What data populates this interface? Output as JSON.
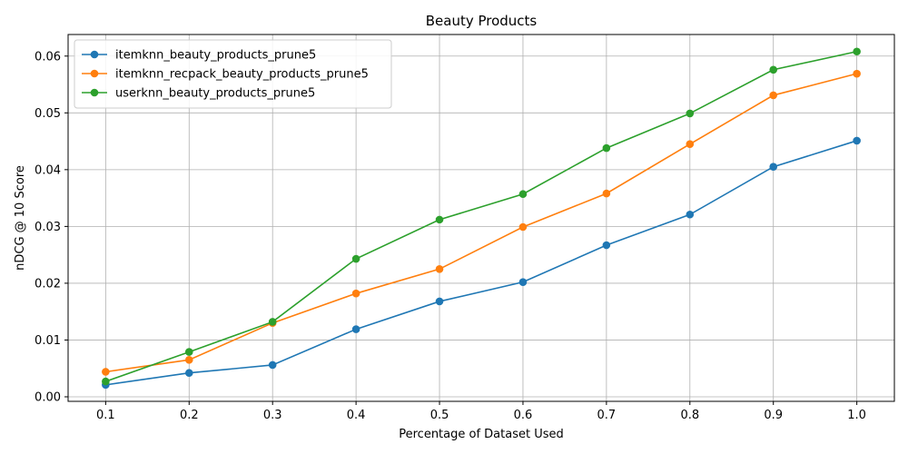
{
  "chart_data": {
    "type": "line",
    "title": "Beauty Products",
    "xlabel": "Percentage of Dataset Used",
    "ylabel": "nDCG @ 10 Score",
    "x": [
      0.1,
      0.2,
      0.3,
      0.4,
      0.5,
      0.6,
      0.7,
      0.8,
      0.9,
      1.0
    ],
    "x_tick_labels": [
      "0.1",
      "0.2",
      "0.3",
      "0.4",
      "0.5",
      "0.6",
      "0.7",
      "0.8",
      "0.9",
      "1.0"
    ],
    "y_ticks": [
      0.0,
      0.01,
      0.02,
      0.03,
      0.04,
      0.05,
      0.06
    ],
    "y_tick_labels": [
      "0.00",
      "0.01",
      "0.02",
      "0.03",
      "0.04",
      "0.05",
      "0.06"
    ],
    "xlim": [
      0.055,
      1.045
    ],
    "ylim": [
      -0.0008,
      0.0638
    ],
    "grid": true,
    "legend_position": "top-left",
    "series": [
      {
        "name": "itemknn_beauty_products_prune5",
        "color": "#1f77b4",
        "values": [
          0.0021,
          0.0042,
          0.0056,
          0.0119,
          0.0168,
          0.0202,
          0.0267,
          0.0321,
          0.0405,
          0.0451
        ]
      },
      {
        "name": "itemknn_recpack_beauty_products_prune5",
        "color": "#ff7f0e",
        "values": [
          0.0044,
          0.0065,
          0.013,
          0.0182,
          0.0225,
          0.0299,
          0.0358,
          0.0445,
          0.0531,
          0.0569
        ]
      },
      {
        "name": "userknn_beauty_products_prune5",
        "color": "#2ca02c",
        "values": [
          0.0027,
          0.0079,
          0.0132,
          0.0243,
          0.0312,
          0.0357,
          0.0438,
          0.0499,
          0.0576,
          0.0608
        ]
      }
    ]
  }
}
